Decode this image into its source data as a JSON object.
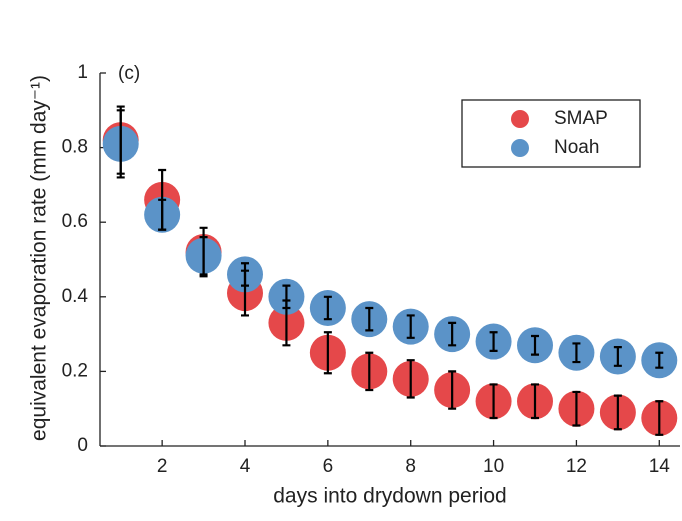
{
  "chart_data": {
    "type": "scatter",
    "annotation": "(c)",
    "xlabel": "days into drydown period",
    "ylabel": "equivalent evaporation rate (mm day⁻¹)",
    "x": [
      1,
      2,
      3,
      4,
      5,
      6,
      7,
      8,
      9,
      10,
      11,
      12,
      13,
      14
    ],
    "series": [
      {
        "name": "SMAP",
        "color": "#e5484a",
        "values": [
          0.82,
          0.66,
          0.52,
          0.41,
          0.33,
          0.25,
          0.2,
          0.18,
          0.15,
          0.12,
          0.12,
          0.1,
          0.09,
          0.075
        ],
        "errors": [
          0.09,
          0.08,
          0.065,
          0.06,
          0.06,
          0.055,
          0.05,
          0.05,
          0.05,
          0.045,
          0.045,
          0.045,
          0.045,
          0.045
        ]
      },
      {
        "name": "Noah",
        "color": "#5b93c8",
        "values": [
          0.81,
          0.62,
          0.51,
          0.46,
          0.4,
          0.37,
          0.34,
          0.32,
          0.3,
          0.28,
          0.27,
          0.25,
          0.24,
          0.23
        ],
        "errors": [
          0.09,
          0.04,
          0.05,
          0.03,
          0.03,
          0.03,
          0.03,
          0.03,
          0.03,
          0.025,
          0.025,
          0.025,
          0.025,
          0.02
        ]
      }
    ],
    "xlim": [
      0.5,
      14.5
    ],
    "ylim": [
      0,
      1
    ],
    "xticks": [
      2,
      4,
      6,
      8,
      10,
      12,
      14
    ],
    "yticks": [
      0,
      0.2,
      0.4,
      0.6,
      0.8,
      1
    ],
    "legend": "upper right"
  }
}
